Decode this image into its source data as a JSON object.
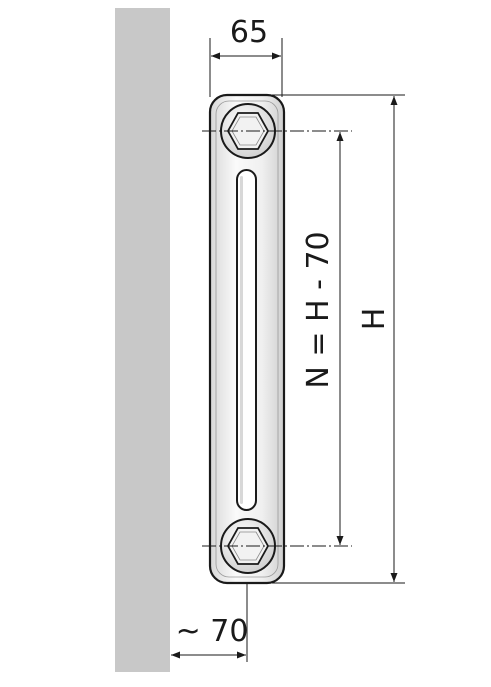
{
  "labels": {
    "width": "65",
    "wall_distance": "~ 70",
    "connection_distance": "N = H - 70",
    "height": "H"
  },
  "colors": {
    "wall": "#c8c8c8",
    "line": "#1a1a1a",
    "radiator_fill": "#f4f4f4",
    "radiator_shadow": "#d6d6d6"
  }
}
